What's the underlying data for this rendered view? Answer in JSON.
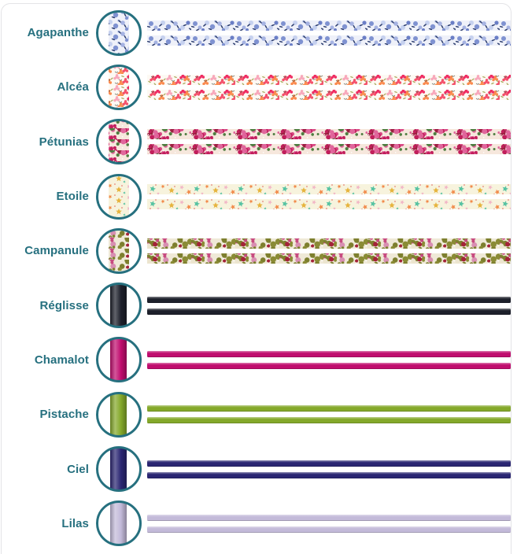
{
  "theme": {
    "accent": "#26707f",
    "card_border": "#e4e4e7",
    "background": "#ffffff",
    "swatch_ring_color": "#26707f",
    "swatch_fill": "#ffffff"
  },
  "rows": [
    {
      "label": "Agapanthe",
      "type": "ribbon",
      "motif": "berries",
      "bg": "#eff1f9",
      "colors": [
        "#7f92d1",
        "#a6b3e2",
        "#c6d1ef",
        "#6a7ec6"
      ],
      "accent_color": "#2e3f70"
    },
    {
      "label": "Alcéa",
      "type": "ribbon",
      "motif": "floral",
      "bg": "#fdf9f3",
      "colors": [
        "#f4516b",
        "#fb8a4e",
        "#f8a8bb",
        "#ef2d62"
      ],
      "accent_color": "#a9aa5e"
    },
    {
      "label": "Pétunias",
      "type": "ribbon",
      "motif": "dense",
      "bg": "#f6e7dc",
      "colors": [
        "#e0679c",
        "#c21e5c",
        "#9b2040",
        "#eba4c4",
        "#d94a86"
      ],
      "accent_color": "#4e7d40"
    },
    {
      "label": "Etoile",
      "type": "ribbon",
      "motif": "stars",
      "bg": "#f7f3dd",
      "colors": [
        "#57c3a2",
        "#f28a4a",
        "#e6b43e",
        "#f2b6c6"
      ],
      "accent_color": "#e2605e"
    },
    {
      "label": "Campanule",
      "type": "ribbon",
      "motif": "dense",
      "bg": "#efe9d7",
      "colors": [
        "#c74a80",
        "#a32339",
        "#d88fb2",
        "#8a8b35",
        "#ece5cf"
      ],
      "accent_color": "#7d7f2e"
    },
    {
      "label": "Réglisse",
      "type": "cord",
      "color": "#1d202b"
    },
    {
      "label": "Chamalot",
      "type": "cord",
      "color": "#c00d6e"
    },
    {
      "label": "Pistache",
      "type": "cord",
      "color": "#84a82a"
    },
    {
      "label": "Ciel",
      "type": "cord",
      "color": "#2a2672"
    },
    {
      "label": "Lilas",
      "type": "cord",
      "color": "#c3bad9"
    }
  ]
}
